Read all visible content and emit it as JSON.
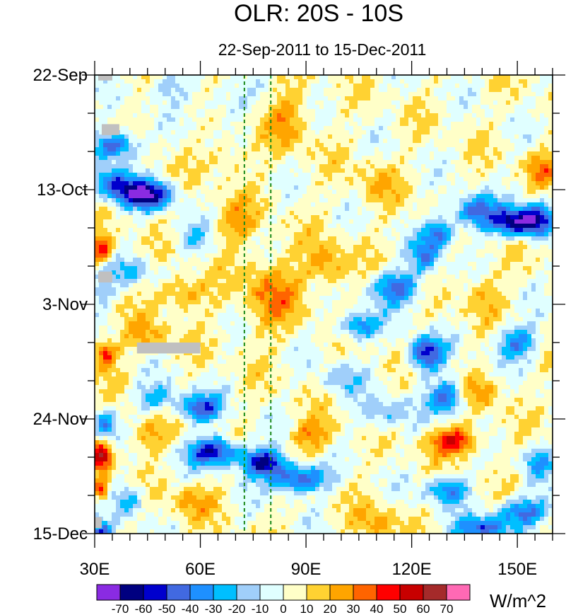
{
  "chart_data": {
    "type": "heatmap",
    "title": "OLR: 20S - 10S",
    "subtitle": "22-Sep-2011 to 15-Dec-2011",
    "units": "W/m^2",
    "x_range": [
      30,
      160
    ],
    "x_ticks": [
      {
        "value": 30,
        "label": "30E"
      },
      {
        "value": 60,
        "label": "60E"
      },
      {
        "value": 90,
        "label": "90E"
      },
      {
        "value": 120,
        "label": "120E"
      },
      {
        "value": 150,
        "label": "150E"
      }
    ],
    "y_range_days": [
      0,
      84
    ],
    "y_ticks": [
      {
        "day": 0,
        "label": "22-Sep"
      },
      {
        "day": 21,
        "label": "13-Oct"
      },
      {
        "day": 42,
        "label": "3-Nov"
      },
      {
        "day": 63,
        "label": "24-Nov"
      },
      {
        "day": 84,
        "label": "15-Dec"
      }
    ],
    "reference_lines_lon": [
      72.5,
      80
    ],
    "colorbar": {
      "levels": [
        "-70",
        "-60",
        "-50",
        "-40",
        "-30",
        "-20",
        "-10",
        "0",
        "10",
        "20",
        "30",
        "40",
        "50",
        "60",
        "70"
      ],
      "colors": [
        "#8a2be2",
        "#000080",
        "#0000cd",
        "#4169e1",
        "#1e90ff",
        "#00bfff",
        "#a0cffa",
        "#e0ffff",
        "#ffffc8",
        "#ffd232",
        "#ffa500",
        "#ff6400",
        "#ff0000",
        "#c80000",
        "#a52a2a",
        "#ff69b4"
      ]
    },
    "missing_color": "#c0c0c0",
    "features": [
      {
        "lon": 45,
        "day": 22,
        "value": -70,
        "sx": 7,
        "sy": 2.5
      },
      {
        "lon": 36,
        "day": 20,
        "value": -50,
        "sx": 6,
        "sy": 3
      },
      {
        "lon": 36,
        "day": 13,
        "value": -55,
        "sx": 6,
        "sy": 2.5
      },
      {
        "lon": 150,
        "day": 27,
        "value": -70,
        "sx": 7,
        "sy": 2.5
      },
      {
        "lon": 138,
        "day": 25,
        "value": -45,
        "sx": 7,
        "sy": 3
      },
      {
        "lon": 128,
        "day": 29,
        "value": -45,
        "sx": 4,
        "sy": 2.5
      },
      {
        "lon": 156,
        "day": 26,
        "value": -40,
        "sx": 4,
        "sy": 3
      },
      {
        "lon": 64,
        "day": 69,
        "value": -65,
        "sx": 7,
        "sy": 2.5
      },
      {
        "lon": 78,
        "day": 71,
        "value": -65,
        "sx": 6,
        "sy": 2.5
      },
      {
        "lon": 88,
        "day": 74,
        "value": -55,
        "sx": 8,
        "sy": 2.5
      },
      {
        "lon": 60,
        "day": 61,
        "value": -50,
        "sx": 6,
        "sy": 2.5
      },
      {
        "lon": 48,
        "day": 59,
        "value": -30,
        "sx": 6,
        "sy": 2.5
      },
      {
        "lon": 124,
        "day": 51,
        "value": -60,
        "sx": 5,
        "sy": 3
      },
      {
        "lon": 130,
        "day": 59,
        "value": -50,
        "sx": 5,
        "sy": 3
      },
      {
        "lon": 116,
        "day": 39,
        "value": -45,
        "sx": 7,
        "sy": 3
      },
      {
        "lon": 150,
        "day": 49,
        "value": -40,
        "sx": 6,
        "sy": 3
      },
      {
        "lon": 105,
        "day": 46,
        "value": -40,
        "sx": 6,
        "sy": 2.5
      },
      {
        "lon": 152,
        "day": 80,
        "value": -45,
        "sx": 8,
        "sy": 2.5
      },
      {
        "lon": 140,
        "day": 83,
        "value": -50,
        "sx": 7,
        "sy": 2
      },
      {
        "lon": 130,
        "day": 76,
        "value": -40,
        "sx": 6,
        "sy": 2.5
      },
      {
        "lon": 156,
        "day": 71,
        "value": -30,
        "sx": 4,
        "sy": 3
      },
      {
        "lon": 124,
        "day": 33,
        "value": -40,
        "sx": 4,
        "sy": 3
      },
      {
        "lon": 33,
        "day": 64,
        "value": -40,
        "sx": 3,
        "sy": 2.5
      },
      {
        "lon": 51,
        "day": 2,
        "value": -20,
        "sx": 6,
        "sy": 2.5
      },
      {
        "lon": 66,
        "day": 5,
        "value": -15,
        "sx": 8,
        "sy": 3
      },
      {
        "lon": 40,
        "day": 36,
        "value": -20,
        "sx": 8,
        "sy": 2.5
      },
      {
        "lon": 32,
        "day": 40,
        "value": -20,
        "sx": 3,
        "sy": 3
      },
      {
        "lon": 58,
        "day": 30,
        "value": -20,
        "sx": 5,
        "sy": 3
      },
      {
        "lon": 40,
        "day": 78,
        "value": -30,
        "sx": 4,
        "sy": 3
      },
      {
        "lon": 32,
        "day": 84,
        "value": -55,
        "sx": 3,
        "sy": 2
      },
      {
        "lon": 112,
        "day": 62,
        "value": -25,
        "sx": 7,
        "sy": 3
      },
      {
        "lon": 100,
        "day": 56,
        "value": -20,
        "sx": 6,
        "sy": 3
      },
      {
        "lon": 85,
        "day": 8,
        "value": 20,
        "sx": 6,
        "sy": 6
      },
      {
        "lon": 80,
        "day": 40,
        "value": 25,
        "sx": 8,
        "sy": 7
      },
      {
        "lon": 92,
        "day": 66,
        "value": 25,
        "sx": 6,
        "sy": 3
      },
      {
        "lon": 32,
        "day": 32,
        "value": 45,
        "sx": 3,
        "sy": 2.5
      },
      {
        "lon": 33,
        "day": 51,
        "value": 40,
        "sx": 3,
        "sy": 2.5
      },
      {
        "lon": 32,
        "day": 70,
        "value": 55,
        "sx": 3,
        "sy": 2.5
      },
      {
        "lon": 32,
        "day": 76,
        "value": 45,
        "sx": 2,
        "sy": 2
      },
      {
        "lon": 132,
        "day": 67,
        "value": 45,
        "sx": 7,
        "sy": 2.5
      },
      {
        "lon": 157,
        "day": 17,
        "value": 25,
        "sx": 4,
        "sy": 3
      },
      {
        "lon": 55,
        "day": 40,
        "value": 25,
        "sx": 7,
        "sy": 3
      },
      {
        "lon": 70,
        "day": 27,
        "value": 20,
        "sx": 6,
        "sy": 4
      },
      {
        "lon": 110,
        "day": 20,
        "value": 15,
        "sx": 6,
        "sy": 4
      },
      {
        "lon": 96,
        "day": 35,
        "value": 25,
        "sx": 6,
        "sy": 4
      },
      {
        "lon": 140,
        "day": 40,
        "value": 15,
        "sx": 6,
        "sy": 4
      },
      {
        "lon": 110,
        "day": 82,
        "value": 20,
        "sx": 6,
        "sy": 3
      },
      {
        "lon": 58,
        "day": 78,
        "value": 20,
        "sx": 6,
        "sy": 3
      },
      {
        "lon": 45,
        "day": 66,
        "value": 20,
        "sx": 6,
        "sy": 3
      },
      {
        "lon": 140,
        "day": 58,
        "value": 20,
        "sx": 6,
        "sy": 3
      },
      {
        "lon": 45,
        "day": 48,
        "value": 20,
        "sx": 6,
        "sy": 3
      },
      {
        "lon": 68,
        "day": 15,
        "value": 15,
        "sx": 6,
        "sy": 3
      }
    ],
    "missing_data": [
      {
        "lon_start": 31,
        "lon_end": 35,
        "day_start": 0,
        "day_end": 1
      },
      {
        "lon_start": 32,
        "lon_end": 37,
        "day_start": 9,
        "day_end": 11
      },
      {
        "lon_start": 31,
        "lon_end": 35,
        "day_start": 36,
        "day_end": 38
      },
      {
        "lon_start": 42,
        "lon_end": 60,
        "day_start": 49,
        "day_end": 51
      },
      {
        "lon_start": 30,
        "lon_end": 32,
        "day_start": 81,
        "day_end": 83
      }
    ]
  }
}
